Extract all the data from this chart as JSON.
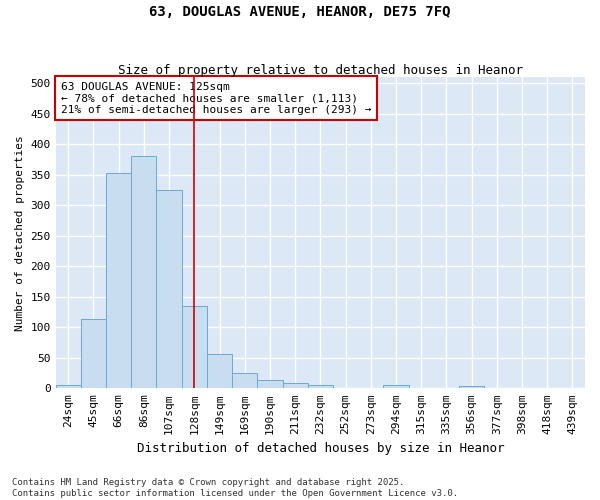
{
  "title": "63, DOUGLAS AVENUE, HEANOR, DE75 7FQ",
  "subtitle": "Size of property relative to detached houses in Heanor",
  "xlabel": "Distribution of detached houses by size in Heanor",
  "ylabel": "Number of detached properties",
  "bar_labels": [
    "24sqm",
    "45sqm",
    "66sqm",
    "86sqm",
    "107sqm",
    "128sqm",
    "149sqm",
    "169sqm",
    "190sqm",
    "211sqm",
    "232sqm",
    "252sqm",
    "273sqm",
    "294sqm",
    "315sqm",
    "335sqm",
    "356sqm",
    "377sqm",
    "398sqm",
    "418sqm",
    "439sqm"
  ],
  "bar_values": [
    5,
    113,
    352,
    380,
    325,
    135,
    57,
    25,
    13,
    8,
    5,
    0,
    0,
    5,
    0,
    0,
    3,
    0,
    0,
    0,
    0
  ],
  "bar_color": "#c9ddf0",
  "bar_edge_color": "#6aaad4",
  "annotation_box_text": "63 DOUGLAS AVENUE: 125sqm\n← 78% of detached houses are smaller (1,113)\n21% of semi-detached houses are larger (293) →",
  "vline_x_index": 5,
  "vline_color": "#cc0000",
  "annotation_box_color": "#cc0000",
  "fig_background_color": "#ffffff",
  "plot_background_color": "#dce8f5",
  "grid_color": "#ffffff",
  "footer_text": "Contains HM Land Registry data © Crown copyright and database right 2025.\nContains public sector information licensed under the Open Government Licence v3.0.",
  "ylim": [
    0,
    510
  ],
  "yticks": [
    0,
    50,
    100,
    150,
    200,
    250,
    300,
    350,
    400,
    450,
    500
  ],
  "title_fontsize": 10,
  "subtitle_fontsize": 9,
  "ylabel_fontsize": 8,
  "xlabel_fontsize": 9,
  "tick_fontsize": 8,
  "annot_fontsize": 8,
  "footer_fontsize": 6.5
}
